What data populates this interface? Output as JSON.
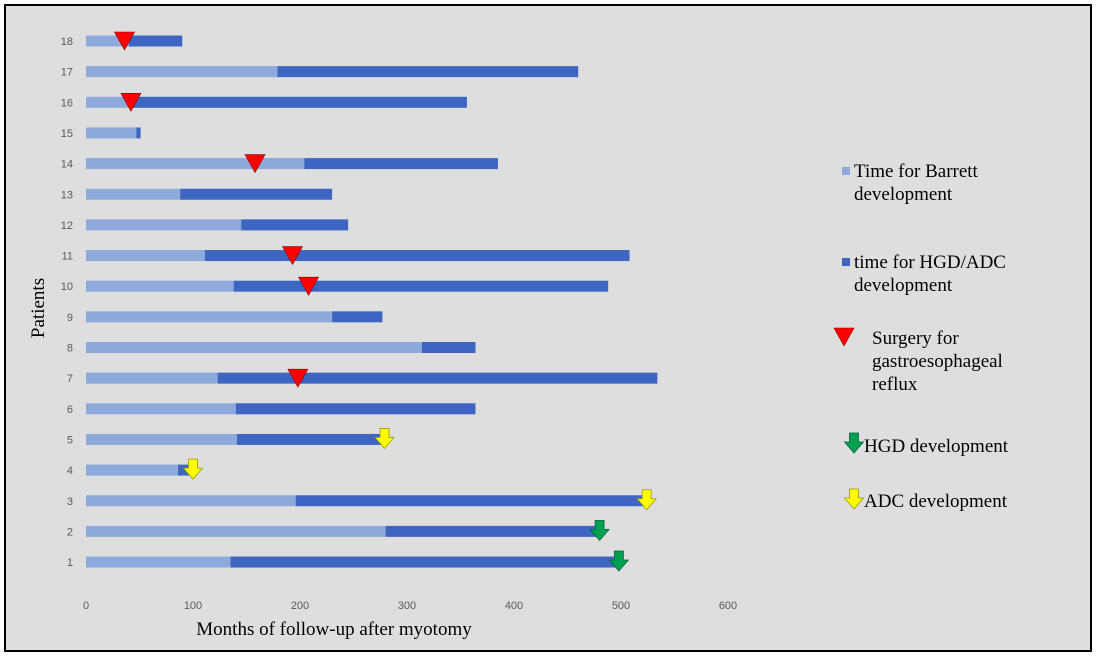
{
  "chart_data": {
    "type": "bar",
    "orientation": "horizontal",
    "stacked": true,
    "title": "",
    "xlabel": "Months of follow-up after myotomy",
    "ylabel": "Patients",
    "xlim": [
      0,
      600
    ],
    "xticks": [
      0,
      100,
      200,
      300,
      400,
      500,
      600
    ],
    "grid": false,
    "legend_position": "right",
    "categories": [
      "1",
      "2",
      "3",
      "4",
      "5",
      "6",
      "7",
      "8",
      "9",
      "10",
      "11",
      "12",
      "13",
      "14",
      "15",
      "16",
      "17",
      "18"
    ],
    "series": [
      {
        "name": "Time for Barrett development",
        "legend_lines": [
          "Time for Barrett",
          "development"
        ],
        "color": "#8ea9db",
        "values": [
          135,
          280,
          196,
          86,
          141,
          140,
          123,
          314,
          230,
          138,
          111,
          145,
          88,
          204,
          47,
          43,
          179,
          40
        ]
      },
      {
        "name": "time for HGD/ADC development",
        "legend_lines": [
          "time for HGD/ADC",
          "development"
        ],
        "color": "#3d65c1",
        "values": [
          365,
          200,
          330,
          14,
          141,
          224,
          411,
          50,
          47,
          350,
          397,
          100,
          142,
          181,
          4,
          313,
          281,
          50
        ]
      }
    ],
    "markers": {
      "surgery": {
        "name": "Surgery for gastroesophageal reflux",
        "legend_lines": [
          "Surgery for",
          "gastroesophageal",
          "reflux"
        ],
        "color": "#ff0000",
        "points": [
          {
            "patient": "18",
            "x": 36
          },
          {
            "patient": "16",
            "x": 42
          },
          {
            "patient": "14",
            "x": 158
          },
          {
            "patient": "11",
            "x": 193
          },
          {
            "patient": "10",
            "x": 208
          },
          {
            "patient": "7",
            "x": 198
          }
        ]
      },
      "hgd": {
        "name": "HGD development",
        "legend_lines": [
          "HGD development"
        ],
        "color": "#00a050",
        "points": [
          {
            "patient": "2",
            "x": 480
          },
          {
            "patient": "1",
            "x": 498
          }
        ]
      },
      "adc": {
        "name": "ADC development",
        "legend_lines": [
          "ADC development"
        ],
        "color": "#ffff00",
        "points": [
          {
            "patient": "5",
            "x": 279
          },
          {
            "patient": "4",
            "x": 100
          },
          {
            "patient": "3",
            "x": 524
          }
        ]
      }
    }
  }
}
